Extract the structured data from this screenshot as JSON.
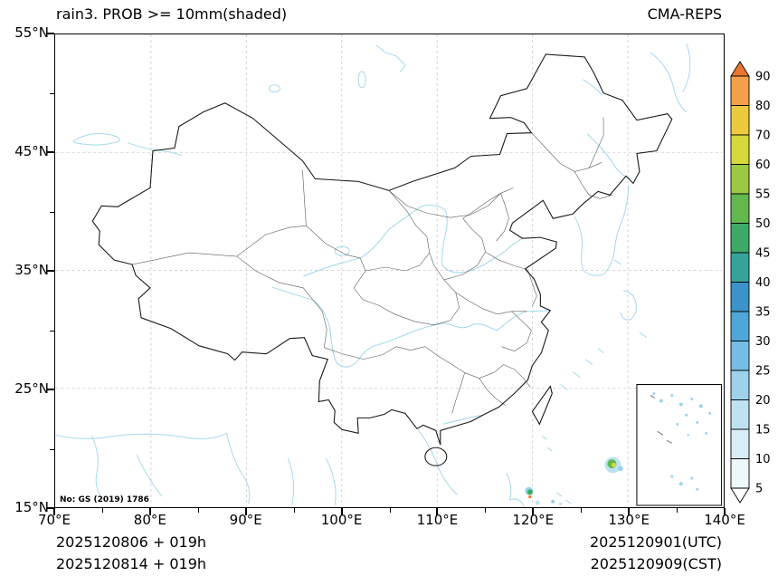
{
  "header": {
    "title": "rain3. PROB >= 10mm(shaded)",
    "model": "CMA-REPS"
  },
  "axes": {
    "y_ticks": [
      "55°N",
      "45°N",
      "35°N",
      "25°N",
      "15°N"
    ],
    "x_ticks": [
      "70°E",
      "80°E",
      "90°E",
      "100°E",
      "110°E",
      "120°E",
      "130°E",
      "140°E"
    ]
  },
  "map": {
    "license": "No: GS (2019) 1786",
    "bounds": {
      "lon_min": 70,
      "lon_max": 140,
      "lat_min": 15,
      "lat_max": 55
    },
    "precip_spots": [
      {
        "lon": 128.5,
        "lat": 18.5,
        "r": 9,
        "color": "#bfe2f0"
      },
      {
        "lon": 128.4,
        "lat": 18.6,
        "r": 5,
        "color": "#63b84f"
      },
      {
        "lon": 128.6,
        "lat": 18.5,
        "r": 2.5,
        "color": "#d6d93c"
      },
      {
        "lon": 129.3,
        "lat": 18.2,
        "r": 3,
        "color": "#9dd2ea"
      },
      {
        "lon": 119.7,
        "lat": 16.3,
        "r": 4.5,
        "color": "#9dd2ea"
      },
      {
        "lon": 119.8,
        "lat": 16.2,
        "r": 3,
        "color": "#3fa968"
      },
      {
        "lon": 119.8,
        "lat": 15.8,
        "r": 1.6,
        "color": "#e8762f"
      },
      {
        "lon": 120.6,
        "lat": 15.3,
        "r": 2.5,
        "color": "#bfe2f0"
      },
      {
        "lon": 122.2,
        "lat": 15.4,
        "r": 2,
        "color": "#9dd2ea"
      },
      {
        "lon": 123.0,
        "lat": 15.2,
        "r": 1.6,
        "color": "#bfe2f0"
      }
    ]
  },
  "colorbar": {
    "tick_labels": [
      "90",
      "80",
      "70",
      "60",
      "55",
      "50",
      "45",
      "40",
      "35",
      "30",
      "25",
      "20",
      "15",
      "10",
      "5"
    ],
    "colors_top_to_bottom": [
      "#e8762f",
      "#f3a04a",
      "#edc93e",
      "#d6d93c",
      "#9cc944",
      "#63b84f",
      "#3fa968",
      "#37a39b",
      "#3b93c9",
      "#4fa6d8",
      "#75bde2",
      "#9dd2ea",
      "#bfe2f0",
      "#d8edf5",
      "#eef7fa",
      "#ffffff"
    ]
  },
  "footer": {
    "init_line1": "2025120806 + 019h",
    "init_line2": "2025120814 + 019h",
    "valid_line1": "2025120901(UTC)",
    "valid_line2": "2025120909(CST)"
  }
}
